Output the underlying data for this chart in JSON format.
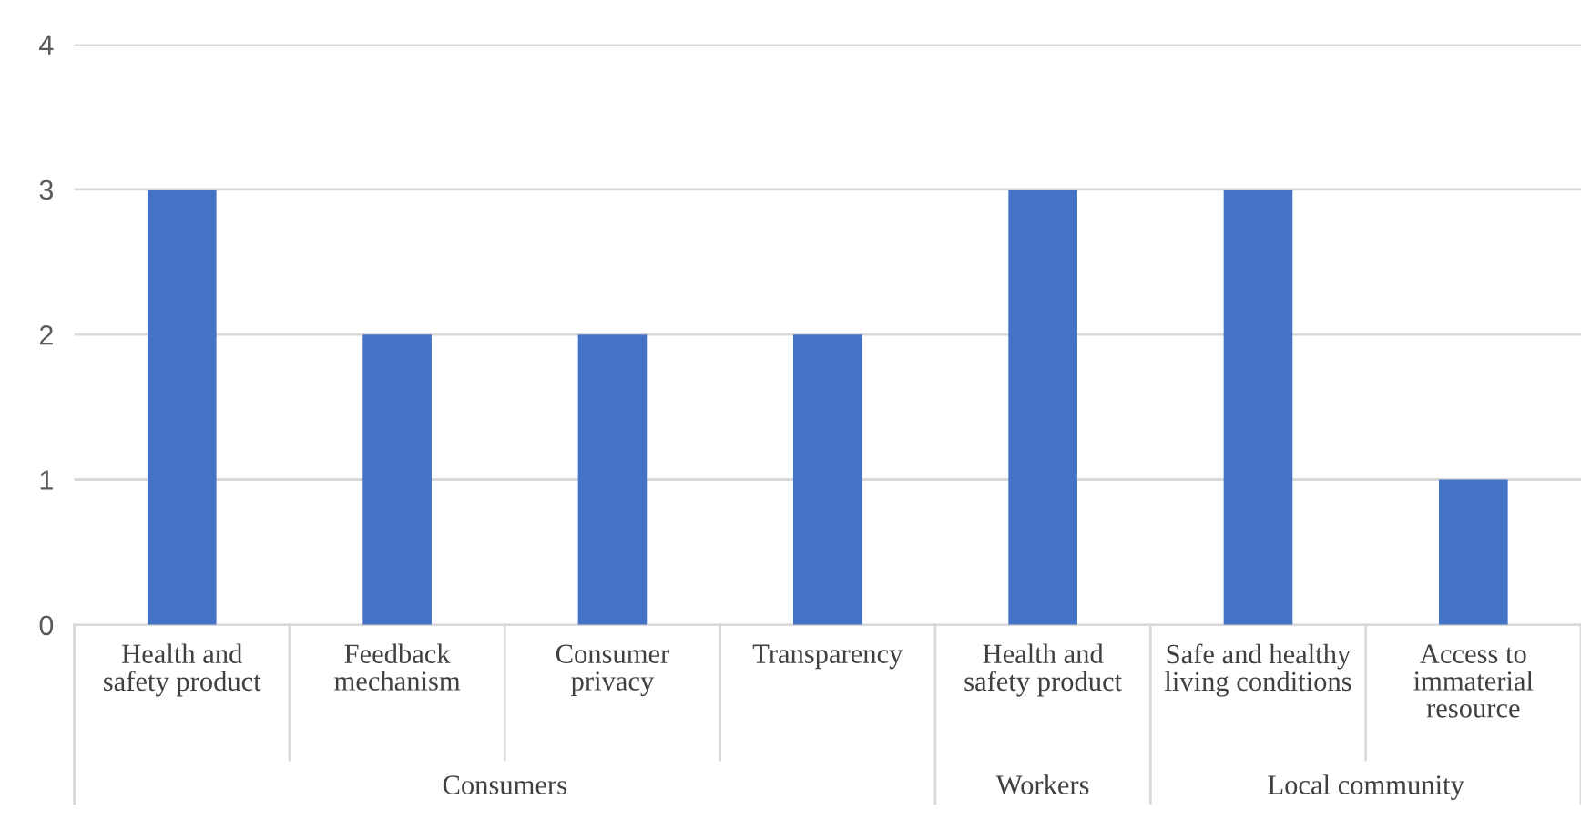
{
  "chart_data": {
    "type": "bar",
    "categories": [
      "Health and\nsafety product",
      "Feedback\nmechanism",
      "Consumer\nprivacy",
      "Transparency",
      "Health and\nsafety product",
      "Safe and healthy\nliving conditions",
      "Access to\nimmaterial\nresource"
    ],
    "values": [
      3,
      2,
      2,
      2,
      3,
      3,
      1
    ],
    "color": "#4472c4",
    "ylim": [
      0,
      4
    ],
    "yticks": [
      0,
      1,
      2,
      3,
      4
    ],
    "grid": "y",
    "annotations": [
      "Consumers",
      "Workers",
      "Local community"
    ]
  }
}
